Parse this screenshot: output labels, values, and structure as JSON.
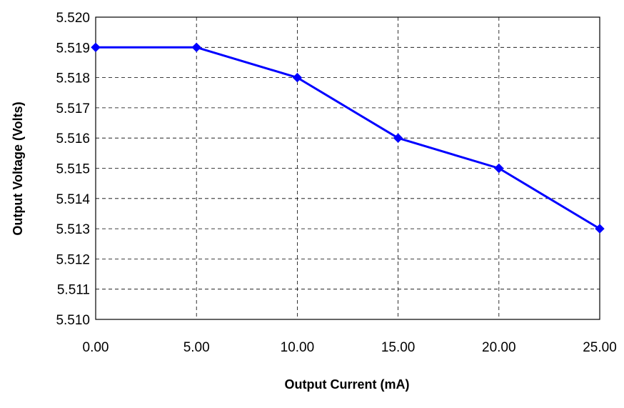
{
  "chart_data": {
    "type": "line",
    "title": "",
    "xlabel": "Output Current (mA)",
    "ylabel": "Output Voltage (Volts)",
    "x": [
      0,
      5,
      10,
      15,
      20,
      25
    ],
    "series": [
      {
        "values": [
          5.519,
          5.519,
          5.518,
          5.516,
          5.515,
          5.513
        ],
        "color": "#0000ff",
        "marker": "diamond"
      }
    ],
    "xlim": [
      0,
      25
    ],
    "ylim": [
      5.51,
      5.52
    ],
    "xticks": [
      0,
      5,
      10,
      15,
      20,
      25
    ],
    "xtick_labels": [
      "0.00",
      "5.00",
      "10.00",
      "15.00",
      "20.00",
      "25.00"
    ],
    "yticks": [
      5.51,
      5.511,
      5.512,
      5.513,
      5.514,
      5.515,
      5.516,
      5.517,
      5.518,
      5.519,
      5.52
    ],
    "ytick_labels": [
      "5.510",
      "5.511",
      "5.512",
      "5.513",
      "5.514",
      "5.515",
      "5.516",
      "5.517",
      "5.518",
      "5.519",
      "5.520"
    ],
    "grid": true,
    "grid_style": "dashed",
    "legend": "none"
  }
}
